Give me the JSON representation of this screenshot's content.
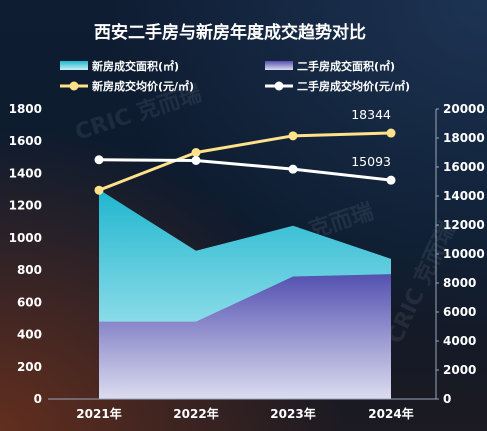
{
  "chart_data": {
    "type": "area+line",
    "title": "西安二手房与新房年度成交趋势对比",
    "categories": [
      "2021年",
      "2022年",
      "2023年",
      "2024年"
    ],
    "y_left": {
      "ylim": [
        0,
        1800
      ],
      "ticks": [
        0,
        200,
        400,
        600,
        800,
        1000,
        1200,
        1400,
        1600,
        1800
      ]
    },
    "y_right": {
      "ylim": [
        0,
        20000
      ],
      "ticks": [
        0,
        2000,
        4000,
        6000,
        8000,
        10000,
        12000,
        14000,
        16000,
        18000,
        20000
      ]
    },
    "series": [
      {
        "name": "新房成交面积(㎡)",
        "kind": "area",
        "axis": "left",
        "values": [
          1300,
          920,
          1075,
          870
        ],
        "color_top": "#1fb6cf",
        "color_bottom": "#c8f1f6"
      },
      {
        "name": "二手房成交面积(㎡)",
        "kind": "area",
        "axis": "left",
        "values": [
          480,
          480,
          760,
          775
        ],
        "color_top": "#5451b0",
        "color_bottom": "#dcdcf0"
      },
      {
        "name": "新房成交均价(元/㎡)",
        "kind": "line",
        "axis": "right",
        "values": [
          14400,
          17000,
          18150,
          18344
        ],
        "color": "#ffe28a",
        "labels": [
          null,
          null,
          null,
          "18344"
        ]
      },
      {
        "name": "二手房成交均价(元/㎡)",
        "kind": "line",
        "axis": "right",
        "values": [
          16500,
          16450,
          15850,
          15093
        ],
        "color": "#ffffff",
        "labels": [
          null,
          null,
          null,
          "15093"
        ]
      }
    ],
    "legend_placement": "top",
    "grid": false
  },
  "watermark": "CRIC 克而瑞"
}
